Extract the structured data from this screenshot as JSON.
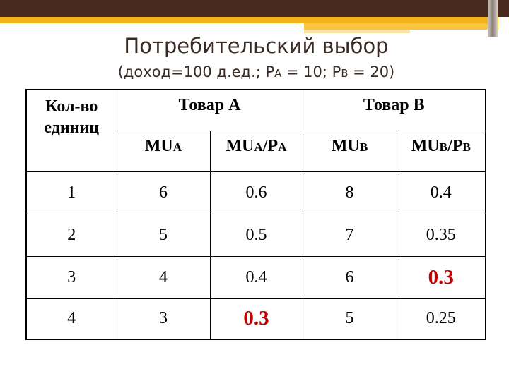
{
  "title": "Потребительский выбор",
  "subtitle": {
    "prefix": "(доход=100 д.ед.; P",
    "a_sub": "A",
    "mid": " = 10; P",
    "b_sub": "B",
    "suffix": " = 20)"
  },
  "table": {
    "col_qty": "Кол-во единиц",
    "group_a": "Товар A",
    "group_b": "Товар B",
    "sub_headers": [
      {
        "main": "MU",
        "sub": "A",
        "rest": "",
        "sub2": ""
      },
      {
        "main": "MU",
        "sub": "A",
        "rest": "/P",
        "sub2": "A"
      },
      {
        "main": "MU",
        "sub": "B",
        "rest": "",
        "sub2": ""
      },
      {
        "main": "MU",
        "sub": "B",
        "rest": "/P",
        "sub2": "B"
      }
    ],
    "rows": [
      [
        "1",
        "6",
        "0.6",
        "8",
        "0.4"
      ],
      [
        "2",
        "5",
        "0.5",
        "7",
        "0.35"
      ],
      [
        "3",
        "4",
        "0.4",
        "6",
        "0.3"
      ],
      [
        "4",
        "3",
        "0.3",
        "5",
        "0.25"
      ]
    ],
    "highlight_color": "#c00000"
  }
}
